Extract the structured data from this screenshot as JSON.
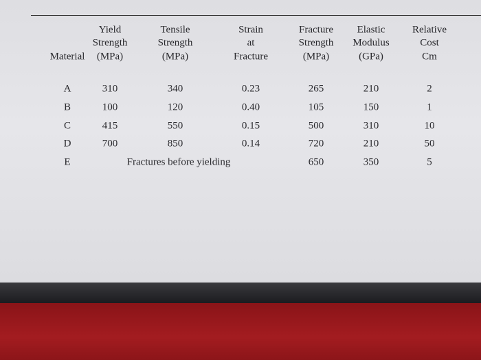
{
  "table": {
    "columns": [
      {
        "lines": [
          "Material"
        ]
      },
      {
        "lines": [
          "Yield",
          "Strength",
          "(MPa)"
        ]
      },
      {
        "lines": [
          "Tensile",
          "Strength",
          "(MPa)"
        ]
      },
      {
        "lines": [
          "Strain",
          "at",
          "Fracture"
        ]
      },
      {
        "lines": [
          "Fracture",
          "Strength",
          "(MPa)"
        ]
      },
      {
        "lines": [
          "Elastic",
          "Modulus",
          "(GPa)"
        ]
      },
      {
        "lines": [
          "Relative",
          "Cost",
          "Cm"
        ]
      }
    ],
    "rows": [
      [
        "A",
        "310",
        "340",
        "0.23",
        "265",
        "210",
        "2"
      ],
      [
        "B",
        "100",
        "120",
        "0.40",
        "105",
        "150",
        "1"
      ],
      [
        "C",
        "415",
        "550",
        "0.15",
        "500",
        "310",
        "10"
      ],
      [
        "D",
        "700",
        "850",
        "0.14",
        "720",
        "210",
        "50"
      ],
      [
        "E",
        "Fractures before yielding",
        "650",
        "350",
        "5"
      ]
    ]
  }
}
